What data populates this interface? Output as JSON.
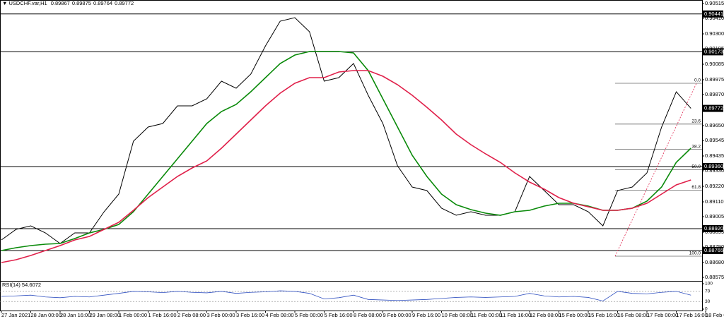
{
  "chart_data": [
    {
      "type": "line",
      "title": "USDCHF.var,H1",
      "ohlc": [
        0.89867,
        0.89875,
        0.89764,
        0.89772
      ],
      "categories": [
        "27 Jan 2021",
        null,
        "28 Jan 00:00",
        null,
        "28 Jan 16:00",
        null,
        "29 Jan 08:00",
        null,
        "1 Feb 00:00",
        null,
        "1 Feb 16:00",
        null,
        "2 Feb 08:00",
        null,
        "3 Feb 00:00",
        null,
        "3 Feb 16:00",
        null,
        "4 Feb 08:00",
        null,
        "5 Feb 00:00",
        null,
        "5 Feb 16:00",
        null,
        "8 Feb 08:00",
        null,
        "9 Feb 00:00",
        null,
        "9 Feb 16:00",
        null,
        "10 Feb 08:00",
        null,
        "11 Feb 00:00",
        null,
        "11 Feb 16:00",
        null,
        "12 Feb 08:00",
        null,
        "15 Feb 00:00",
        null,
        "15 Feb 16:00",
        null,
        "16 Feb 08:00",
        null,
        "17 Feb 00:00",
        null,
        "17 Feb 16:00",
        null,
        "18 Feb 08:00"
      ],
      "series": [
        {
          "color": "#000000",
          "values": [
            0.8884,
            0.88915,
            0.8894,
            0.8889,
            0.88815,
            0.8889,
            0.8889,
            0.8904,
            0.89165,
            0.8954,
            0.8964,
            0.89665,
            0.8979,
            0.8979,
            0.8984,
            0.89965,
            0.89915,
            0.90015,
            0.90215,
            0.9039,
            0.90415,
            0.90315,
            0.89965,
            0.8999,
            0.9009,
            0.89865,
            0.89665,
            0.89365,
            0.89215,
            0.8919,
            0.89065,
            0.89015,
            0.8904,
            0.89015,
            0.89015,
            0.8904,
            0.8929,
            0.8919,
            0.8909,
            0.8909,
            0.8904,
            0.8894,
            0.8919,
            0.89215,
            0.89315,
            0.8964,
            0.8989,
            0.89772,
            null
          ]
        },
        {
          "color": "#0a8a0a",
          "values": [
            0.88765,
            0.88785,
            0.888,
            0.8881,
            0.88815,
            0.8885,
            0.8889,
            0.88915,
            0.8895,
            0.8904,
            0.89165,
            0.8929,
            0.89415,
            0.8954,
            0.89665,
            0.8975,
            0.898,
            0.8989,
            0.8999,
            0.9009,
            0.9015,
            0.90175,
            0.90175,
            0.90175,
            0.90165,
            0.9004,
            0.8984,
            0.8964,
            0.8944,
            0.8929,
            0.89165,
            0.8909,
            0.89055,
            0.8903,
            0.89015,
            0.8904,
            0.8905,
            0.8908,
            0.891,
            0.891,
            0.8908,
            0.8905,
            0.8905,
            0.89065,
            0.89115,
            0.89215,
            0.8939,
            0.8949,
            null
          ]
        },
        {
          "color": "#e0204a",
          "values": [
            0.8868,
            0.887,
            0.8873,
            0.88765,
            0.888,
            0.8884,
            0.88865,
            0.88915,
            0.88965,
            0.8905,
            0.8914,
            0.89215,
            0.8929,
            0.8935,
            0.894,
            0.8949,
            0.8959,
            0.8969,
            0.8979,
            0.8988,
            0.8995,
            0.8999,
            0.8999,
            0.9003,
            0.9004,
            0.9004,
            0.9,
            0.8994,
            0.89865,
            0.8978,
            0.8969,
            0.8959,
            0.89515,
            0.8945,
            0.8939,
            0.89315,
            0.8925,
            0.892,
            0.8914,
            0.891,
            0.89075,
            0.8905,
            0.8905,
            0.89065,
            0.891,
            0.89165,
            0.8923,
            0.89265,
            null
          ]
        }
      ],
      "ylim": [
        0.8855,
        0.9054
      ],
      "yticks": [
        0.90515,
        {
          "value": 0.9041,
          "label": "0.90410"
        },
        {
          "value": 0.903,
          "label": "0.90300"
        },
        0.90195,
        0.90085,
        0.89975,
        {
          "value": 0.8987,
          "label": "0.89870"
        },
        {
          "value": 0.8965,
          "label": "0.89650"
        },
        0.89545,
        0.89435,
        {
          "value": 0.8933,
          "label": "0.89330"
        },
        {
          "value": 0.8922,
          "label": "0.89220"
        },
        {
          "value": 0.8911,
          "label": "0.89110"
        },
        0.89005,
        0.88895,
        {
          "value": 0.8879,
          "label": "0.88790"
        },
        {
          "value": 0.8868,
          "label": "0.88680"
        },
        0.88575
      ],
      "levels": [
        0.90441,
        0.90173,
        {
          "value": 0.8936,
          "label": "0.89360"
        },
        {
          "value": 0.8892,
          "label": "0.88920"
        },
        0.88765
      ],
      "current_price": 0.89772,
      "fib": {
        "high": 0.8995,
        "low": 0.88725,
        "levels": [
          {
            "value": 0,
            "label": "0.0"
          },
          23.6,
          38.2,
          {
            "value": 50,
            "label": "50.0"
          },
          61.8,
          {
            "value": 100,
            "label": "100.0"
          }
        ]
      }
    },
    {
      "type": "line",
      "title": "RSI(14) 54.6072",
      "series": [
        {
          "color": "#3050c0",
          "values": [
            50,
            52,
            55,
            48,
            45,
            50,
            48,
            55,
            62,
            70,
            68,
            65,
            70,
            66,
            64,
            70,
            62,
            66,
            68,
            72,
            70,
            62,
            40,
            45,
            55,
            38,
            36,
            34,
            36,
            38,
            42,
            46,
            48,
            46,
            48,
            50,
            62,
            52,
            48,
            50,
            46,
            32,
            70,
            62,
            60,
            66,
            70,
            55,
            null
          ]
        }
      ],
      "ylim": [
        0,
        100
      ],
      "yticks": [
        100,
        70,
        30,
        0
      ]
    }
  ]
}
